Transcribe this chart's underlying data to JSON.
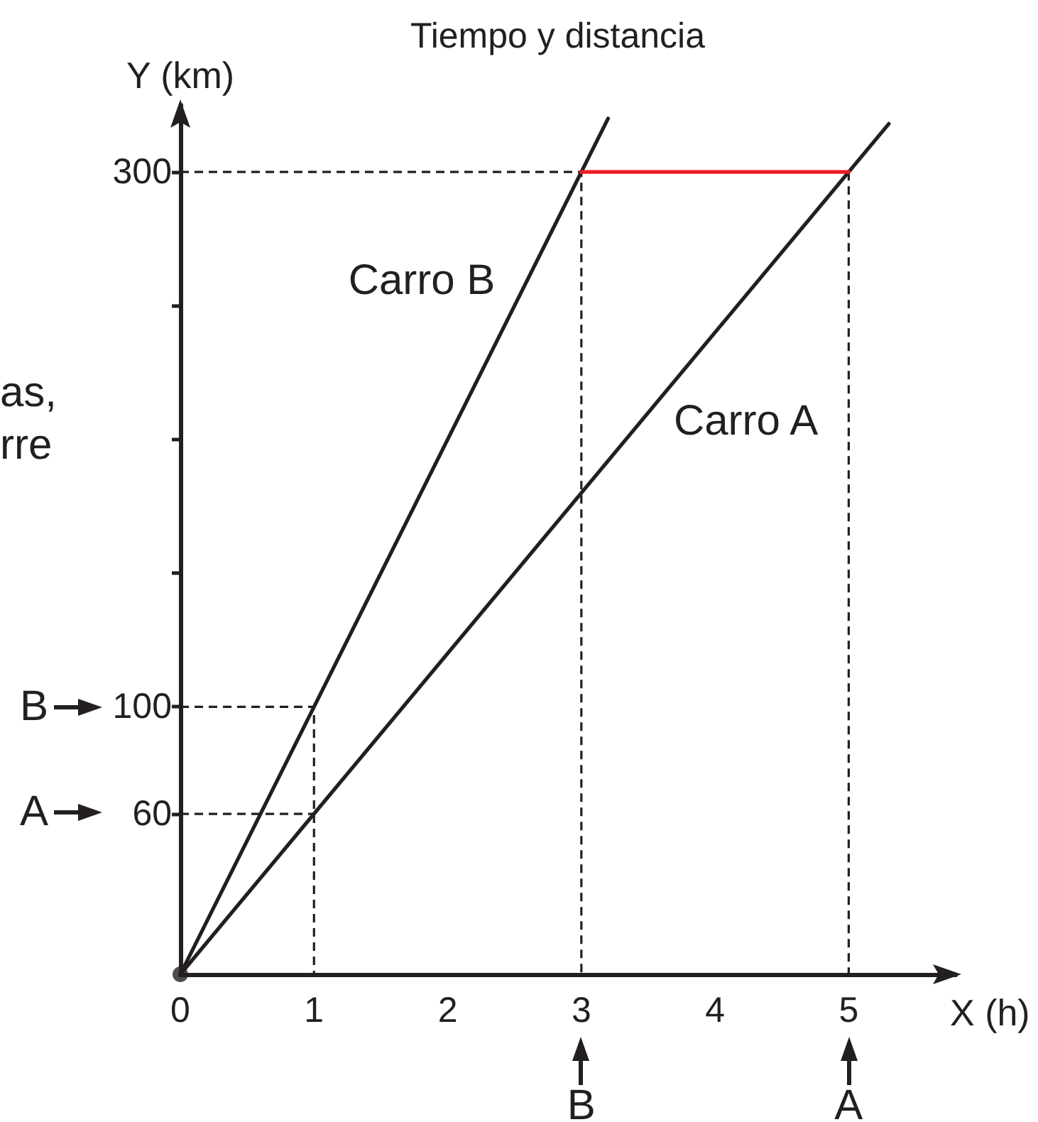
{
  "chart_data": {
    "type": "line",
    "title": "Tiempo y distancia",
    "xlabel": "X (h)",
    "ylabel": "Y (km)",
    "xlim": [
      0,
      5.8
    ],
    "ylim": [
      0,
      325
    ],
    "xticks": [
      0,
      1,
      2,
      3,
      4,
      5
    ],
    "yticks": [
      60,
      100,
      {
        "value": 150,
        "label": null
      },
      {
        "value": 200,
        "label": null
      },
      {
        "value": 250,
        "label": null
      },
      300
    ],
    "series": [
      {
        "line_style": "dashed",
        "marker": "none",
        "color": "#231f20",
        "x": [
          0,
          3,
          3
        ],
        "values": [
          300,
          300,
          0
        ]
      },
      {
        "line_style": "dashed",
        "marker": "none",
        "color": "#231f20",
        "x": [
          5,
          5
        ],
        "values": [
          300,
          0
        ]
      },
      {
        "line_style": "dashed",
        "marker": "none",
        "color": "#231f20",
        "x": [
          0,
          1,
          1
        ],
        "values": [
          100,
          100,
          0
        ]
      },
      {
        "line_style": "dashed",
        "marker": "none",
        "color": "#231f20",
        "x": [
          0,
          1
        ],
        "values": [
          60,
          60
        ]
      },
      {
        "name": "Carro B",
        "line_style": "solid",
        "marker": "none",
        "color": "#231f20",
        "x": [
          0,
          1,
          3,
          3.2
        ],
        "values": [
          0,
          100,
          300,
          320
        ]
      },
      {
        "name": "Carro A",
        "line_style": "solid",
        "marker": "none",
        "color": "#231f20",
        "x": [
          0,
          1,
          5,
          5.3
        ],
        "values": [
          0,
          60,
          300,
          318
        ]
      },
      {
        "line_style": "solid",
        "marker": "none",
        "color": "#ed1c24",
        "x": [
          3,
          5
        ],
        "values": [
          300,
          300
        ]
      },
      {
        "type": "scatter",
        "marker": "circle",
        "color": "#231f20",
        "x": [
          0
        ],
        "values": [
          0
        ]
      }
    ],
    "annotations": [
      "as,",
      "rre",
      "B",
      "A",
      {
        "text": "B",
        "x": 3
      },
      {
        "text": "A",
        "x": 5
      }
    ]
  }
}
